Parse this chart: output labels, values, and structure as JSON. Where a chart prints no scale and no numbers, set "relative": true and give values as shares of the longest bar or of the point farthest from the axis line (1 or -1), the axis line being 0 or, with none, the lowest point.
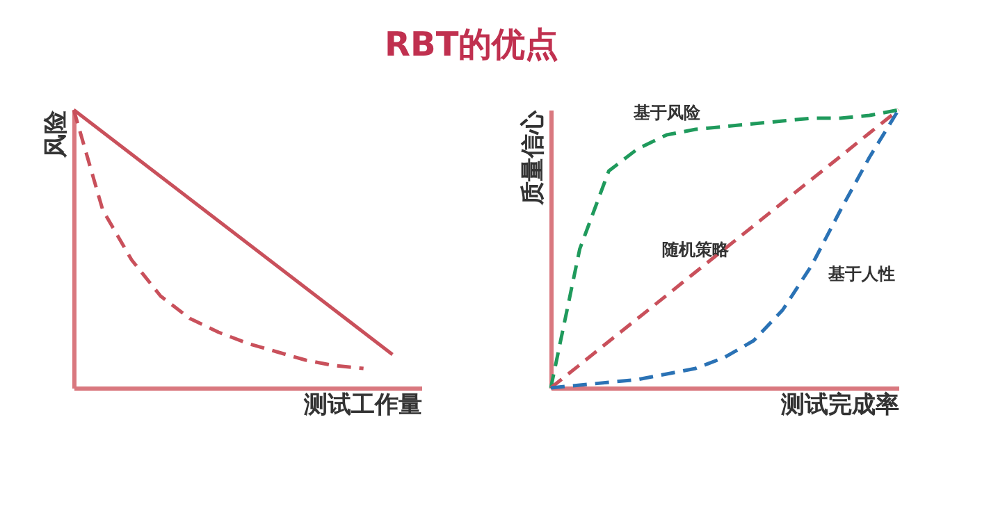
{
  "chart_data": [
    {
      "type": "line",
      "title": "RBT的优点",
      "relative": true,
      "ylabel": "风险",
      "xlabel": "测试工作量",
      "grid": false,
      "legend": false,
      "tick_labels": false,
      "categories": [
        null,
        null,
        null,
        null,
        null,
        null,
        null,
        null,
        null,
        null,
        null,
        null,
        null
      ],
      "series": [
        {
          "color": "#c9505b",
          "line_style": "solid",
          "values": [
            1,
            0.92,
            0.84,
            0.76,
            0.68,
            0.6,
            0.52,
            0.44,
            0.36,
            0.28,
            0.2,
            0.12,
            null
          ]
        },
        {
          "color": "#c9505b",
          "line_style": "dashed",
          "values": [
            1,
            0.64,
            0.46,
            0.33,
            0.25,
            0.2,
            0.16,
            0.13,
            0.1,
            0.08,
            0.07,
            null,
            null
          ]
        }
      ]
    },
    {
      "type": "line",
      "relative": true,
      "ylabel": "质量信心",
      "xlabel": "测试完成率",
      "grid": false,
      "legend": false,
      "tick_labels": false,
      "categories": [
        null,
        null,
        null,
        null,
        null,
        null,
        null,
        null,
        null,
        null,
        null,
        null,
        null
      ],
      "series": [
        {
          "name": "基于风险",
          "color": "#1f9a5c",
          "line_style": "dashed",
          "values": [
            0,
            0.5,
            0.78,
            0.86,
            0.91,
            0.93,
            0.94,
            0.95,
            0.96,
            0.97,
            0.97,
            0.98,
            1
          ]
        },
        {
          "name": "随机策略",
          "color": "#c9505b",
          "line_style": "dashed",
          "values": [
            0,
            0.083,
            0.167,
            0.25,
            0.333,
            0.417,
            0.5,
            0.583,
            0.667,
            0.75,
            0.833,
            0.917,
            1
          ]
        },
        {
          "name": "基于人性",
          "color": "#2a72b5",
          "line_style": "dashed",
          "values": [
            0,
            0.01,
            0.02,
            0.03,
            0.05,
            0.07,
            0.11,
            0.17,
            0.28,
            0.44,
            0.64,
            0.83,
            1
          ]
        }
      ]
    }
  ]
}
